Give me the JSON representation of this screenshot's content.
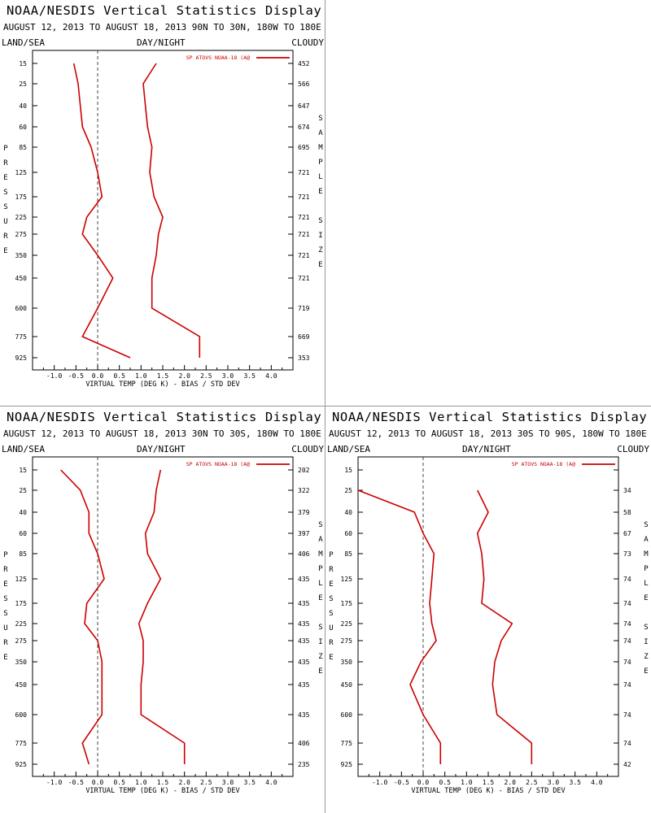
{
  "chart_data": [
    {
      "type": "line",
      "title": "NOAA/NESDIS Vertical Statistics Display",
      "subtitle": "AUGUST 12, 2013 TO AUGUST 18, 2013  90N TO 30N, 180W TO 180E",
      "top_left_label": "LAND/SEA",
      "top_center_label": "DAY/NIGHT",
      "top_right_label": "CLOUDY",
      "xlabel": "VIRTUAL TEMP (DEG K) - BIAS / STD DEV",
      "ylabel": "PRESSURE",
      "y2label": "SAMPLE SIZE",
      "legend": "SP ATOVS NOAA-18 (A@",
      "xlim": [
        -1.5,
        4.5
      ],
      "xticks": [
        "-1.0",
        "-0.5",
        "0.0",
        "0.5",
        "1.0",
        "1.5",
        "2.0",
        "2.5",
        "3.0",
        "3.5",
        "4.0"
      ],
      "pressure_levels": [
        "15",
        "25",
        "40",
        "60",
        "85",
        "125",
        "175",
        "225",
        "275",
        "350",
        "450",
        "600",
        "775",
        "925"
      ],
      "sample_size": [
        "452",
        "566",
        "647",
        "674",
        "695",
        "721",
        "721",
        "721",
        "721",
        "721",
        "721",
        "719",
        "669",
        "353"
      ],
      "series": [
        {
          "values": [
            -0.55,
            -0.45,
            -0.4,
            -0.35,
            -0.15,
            0.0,
            0.1,
            -0.25,
            -0.35,
            0.0,
            0.35,
            0.0,
            -0.35,
            0.75
          ]
        },
        {
          "values": [
            1.35,
            1.05,
            1.1,
            1.15,
            1.25,
            1.2,
            1.3,
            1.5,
            1.4,
            1.35,
            1.25,
            1.25,
            2.35,
            2.35
          ]
        }
      ]
    },
    {
      "type": "line",
      "title": "NOAA/NESDIS Vertical Statistics Display",
      "subtitle": "AUGUST 12, 2013 TO AUGUST 18, 2013  30N TO 30S, 180W TO 180E",
      "top_left_label": "LAND/SEA",
      "top_center_label": "DAY/NIGHT",
      "top_right_label": "CLOUDY",
      "xlabel": "VIRTUAL TEMP (DEG K) - BIAS / STD DEV",
      "ylabel": "PRESSURE",
      "y2label": "SAMPLE SIZE",
      "legend": "SP ATOVS NOAA-18 (A@",
      "xlim": [
        -1.5,
        4.5
      ],
      "xticks": [
        "-1.0",
        "-0.5",
        "0.0",
        "0.5",
        "1.0",
        "1.5",
        "2.0",
        "2.5",
        "3.0",
        "3.5",
        "4.0"
      ],
      "pressure_levels": [
        "15",
        "25",
        "40",
        "60",
        "85",
        "125",
        "175",
        "225",
        "275",
        "350",
        "450",
        "600",
        "775",
        "925"
      ],
      "sample_size": [
        "202",
        "322",
        "379",
        "397",
        "406",
        "435",
        "435",
        "435",
        "435",
        "435",
        "435",
        "435",
        "406",
        "235"
      ],
      "series": [
        {
          "values": [
            -0.85,
            -0.4,
            -0.2,
            -0.2,
            0.0,
            0.15,
            -0.25,
            -0.3,
            0.0,
            0.1,
            0.1,
            0.1,
            -0.35,
            -0.2
          ]
        },
        {
          "values": [
            1.45,
            1.35,
            1.3,
            1.1,
            1.15,
            1.45,
            1.15,
            0.95,
            1.05,
            1.05,
            1.0,
            1.0,
            2.0,
            2.0
          ]
        }
      ]
    },
    {
      "type": "line",
      "title": "NOAA/NESDIS Vertical Statistics Display",
      "subtitle": "AUGUST 12, 2013 TO AUGUST 18, 2013  30S TO 90S, 180W TO 180E",
      "top_left_label": "LAND/SEA",
      "top_center_label": "DAY/NIGHT",
      "top_right_label": "CLOUDY",
      "xlabel": "VIRTUAL TEMP (DEG K) - BIAS / STD DEV",
      "ylabel": "PRESSURE",
      "y2label": "SAMPLE SIZE",
      "legend": "SP ATOVS NOAA-18 (A@",
      "xlim": [
        -1.5,
        4.5
      ],
      "xticks": [
        "-1.0",
        "-0.5",
        "0.0",
        "0.5",
        "1.0",
        "1.5",
        "2.0",
        "2.5",
        "3.0",
        "3.5",
        "4.0"
      ],
      "pressure_levels": [
        "15",
        "25",
        "40",
        "60",
        "85",
        "125",
        "175",
        "225",
        "275",
        "350",
        "450",
        "600",
        "775",
        "925"
      ],
      "sample_size": [
        "",
        "34",
        "58",
        "67",
        "73",
        "74",
        "74",
        "74",
        "74",
        "74",
        "74",
        "74",
        "74",
        "42"
      ],
      "series": [
        {
          "values": [
            null,
            -1.5,
            -0.2,
            0.0,
            0.25,
            0.2,
            0.15,
            0.2,
            0.3,
            -0.05,
            -0.3,
            0.0,
            0.4,
            0.4
          ]
        },
        {
          "values": [
            null,
            1.25,
            1.5,
            1.25,
            1.35,
            1.4,
            1.35,
            2.05,
            1.8,
            1.65,
            1.6,
            1.7,
            2.5,
            2.5
          ]
        }
      ]
    }
  ]
}
